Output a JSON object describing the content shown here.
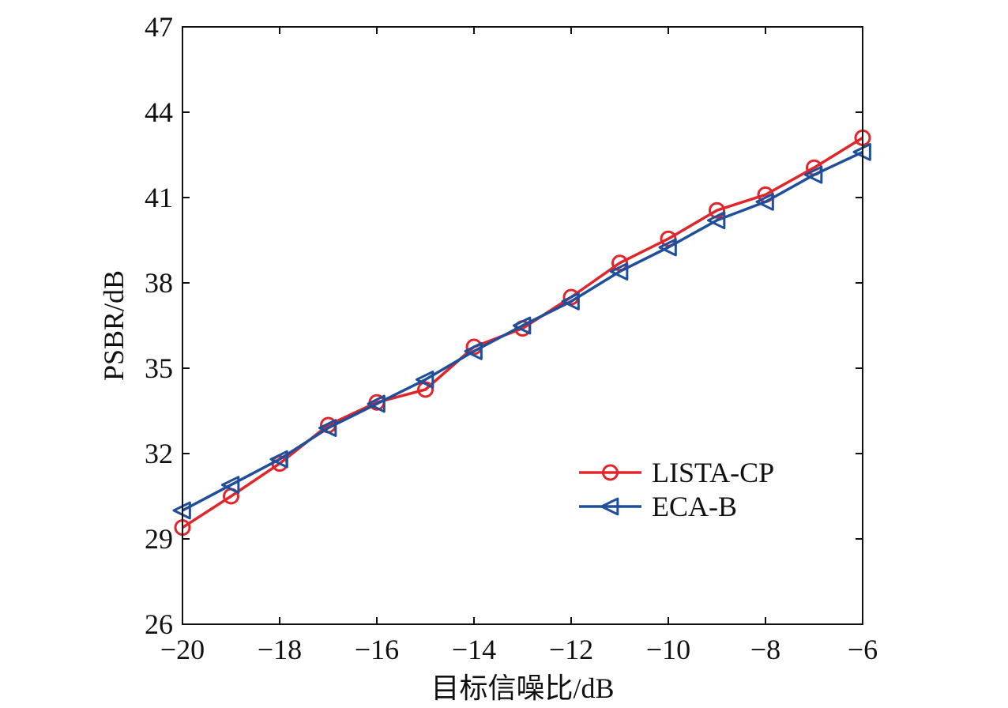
{
  "chart_data": {
    "type": "line",
    "xlabel": "目标信噪比/dB",
    "ylabel": "PSBR/dB",
    "xlim": [
      -20,
      -6
    ],
    "ylim": [
      26,
      47
    ],
    "xticks": [
      -20,
      -18,
      -16,
      -14,
      -12,
      -10,
      -8,
      -6
    ],
    "yticks": [
      26,
      29,
      32,
      35,
      38,
      41,
      44,
      47
    ],
    "xtick_labels": [
      "−20",
      "−18",
      "−16",
      "−14",
      "−12",
      "−10",
      "−8",
      "−6"
    ],
    "ytick_labels": [
      "26",
      "29",
      "32",
      "35",
      "38",
      "41",
      "44",
      "47"
    ],
    "grid": false,
    "legend_position": "lower-right",
    "x": [
      -20,
      -19,
      -18,
      -17,
      -16,
      -15,
      -14,
      -13,
      -12,
      -11,
      -10,
      -9,
      -8,
      -7,
      -6
    ],
    "series": [
      {
        "name": "LISTA-CP",
        "color": "#e0252b",
        "marker": "circle",
        "values": [
          29.4,
          30.5,
          31.65,
          33.0,
          33.8,
          34.25,
          35.75,
          36.4,
          37.5,
          38.7,
          39.55,
          40.55,
          41.1,
          42.05,
          43.1
        ]
      },
      {
        "name": "ECA-B",
        "color": "#1f4f9a",
        "marker": "triangle-left",
        "values": [
          30.0,
          30.9,
          31.8,
          32.9,
          33.75,
          34.6,
          35.6,
          36.5,
          37.35,
          38.4,
          39.25,
          40.2,
          40.85,
          41.8,
          42.6
        ]
      }
    ]
  }
}
